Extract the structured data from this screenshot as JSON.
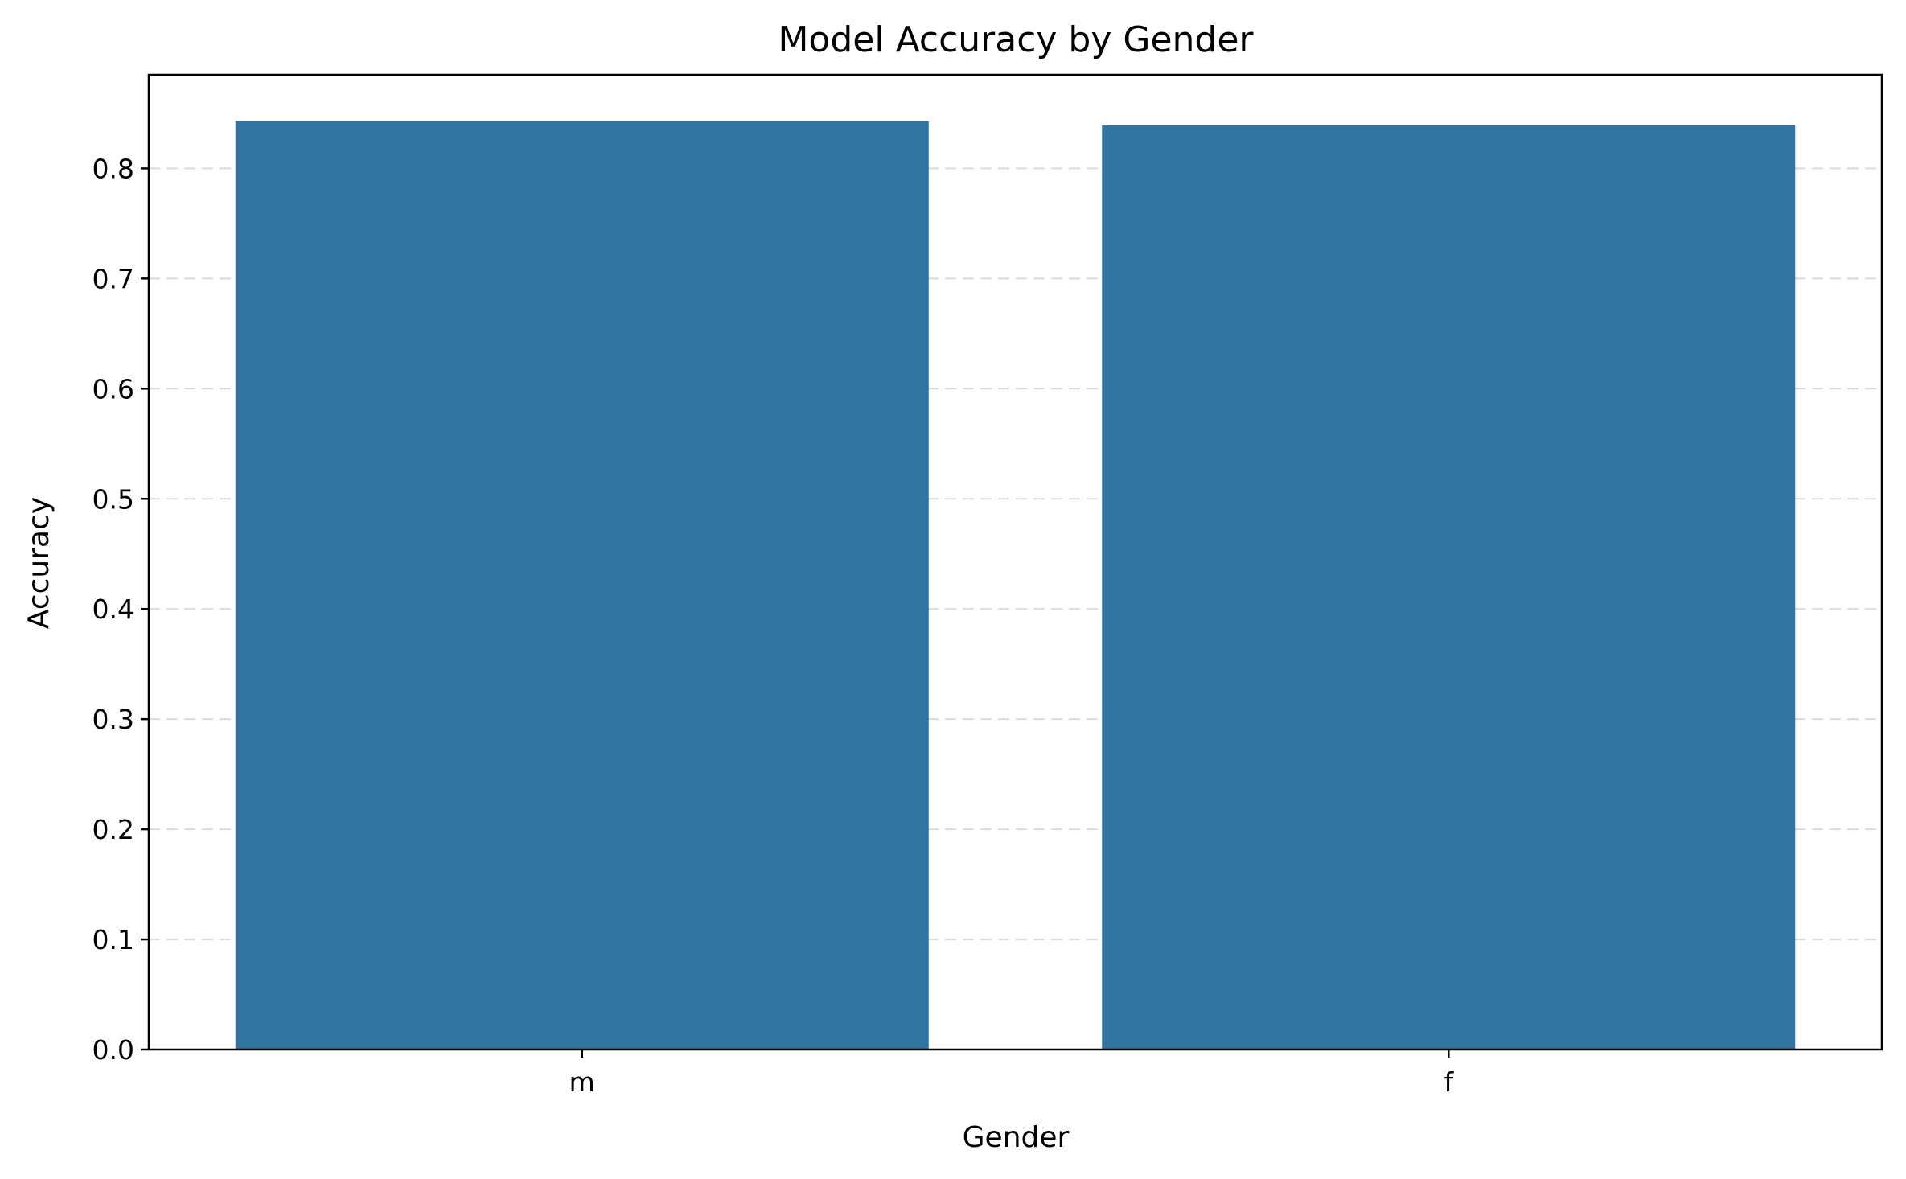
{
  "chart_data": {
    "type": "bar",
    "title": "Model Accuracy by Gender",
    "xlabel": "Gender",
    "ylabel": "Accuracy",
    "categories": [
      "m",
      "f"
    ],
    "values": [
      0.843,
      0.839
    ],
    "ylim": [
      0,
      0.885
    ],
    "yticks": [
      0.0,
      0.1,
      0.2,
      0.3,
      0.4,
      0.5,
      0.6,
      0.7,
      0.8
    ],
    "ytick_labels": [
      "0.0",
      "0.1",
      "0.2",
      "0.3",
      "0.4",
      "0.5",
      "0.6",
      "0.7",
      "0.8"
    ],
    "grid": "horizontal-dashed",
    "bar_color": "#3274a1",
    "legend": "none"
  }
}
